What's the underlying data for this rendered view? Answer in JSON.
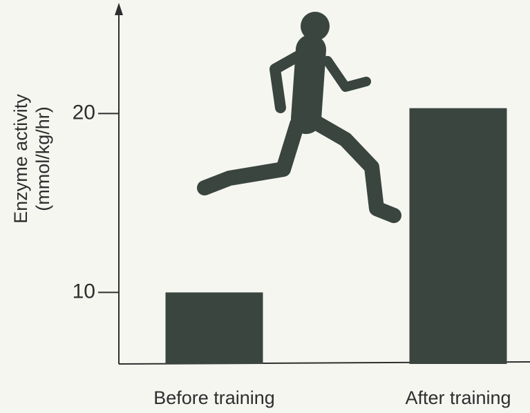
{
  "chart_data": {
    "type": "bar",
    "ylabel": [
      "Enzyme activity",
      "(mmol/kg/hr)"
    ],
    "categories": [
      "Before training",
      "After training"
    ],
    "values": [
      10,
      20.3
    ],
    "color": "#3a4540",
    "ylim": [
      6,
      26
    ],
    "yticks": [
      10,
      20
    ]
  }
}
